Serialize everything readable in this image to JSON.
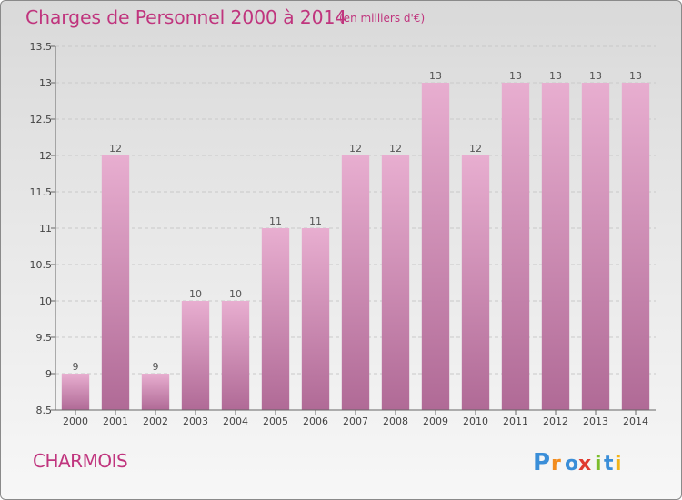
{
  "chart_data": {
    "type": "bar",
    "title": "Charges de Personnel 2000 à 2014",
    "subtitle": "(en milliers d'€)",
    "categories": [
      "2000",
      "2001",
      "2002",
      "2003",
      "2004",
      "2005",
      "2006",
      "2007",
      "2008",
      "2009",
      "2010",
      "2011",
      "2012",
      "2013",
      "2014"
    ],
    "values": [
      9,
      12,
      9,
      10,
      10,
      11,
      11,
      12,
      12,
      13,
      12,
      13,
      13,
      13,
      13
    ],
    "value_labels": [
      "9",
      "12",
      "9",
      "10",
      "10",
      "11",
      "11",
      "12",
      "12",
      "13",
      "12",
      "13",
      "13",
      "13",
      "13"
    ],
    "ylim": [
      8.5,
      13.5
    ],
    "yticks": [
      8.5,
      9,
      9.5,
      10,
      10.5,
      11,
      11.5,
      12,
      12.5,
      13,
      13.5
    ],
    "ytick_labels": [
      "8.5",
      "9",
      "9.5",
      "10",
      "10.5",
      "11",
      "11.5",
      "12",
      "12.5",
      "13",
      "13.5"
    ],
    "grid": true,
    "colors": {
      "bar_light": "#e8aed0",
      "bar_dark": "#b06a96",
      "accent": "#c0357e"
    }
  },
  "commune": "CHARMOIS",
  "logo": {
    "text": [
      "P",
      "r",
      "o",
      "x",
      "i",
      "t",
      "i"
    ],
    "colors": [
      "#3a8ed8",
      "#f28c1e",
      "#3a8ed8",
      "#e03a2f",
      "#7cbd2c",
      "#3a8ed8",
      "#f2b417"
    ]
  }
}
